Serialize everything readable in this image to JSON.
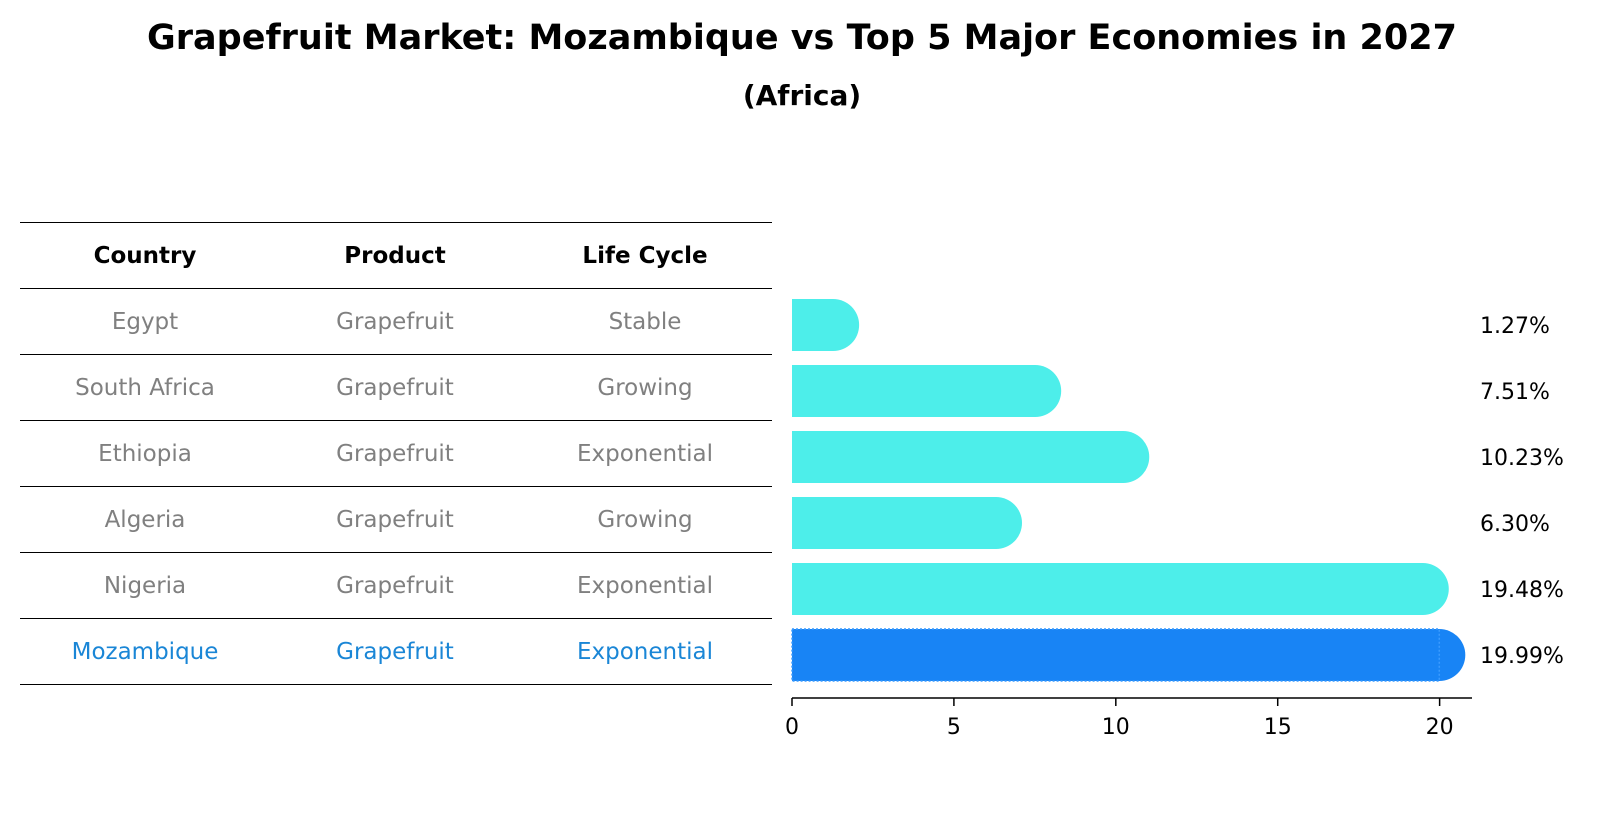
{
  "title": "Grapefruit Market: Mozambique vs Top 5 Major Economies in 2027",
  "subtitle": "(Africa)",
  "table": {
    "headers": [
      "Country",
      "Product",
      "Life Cycle"
    ],
    "rows": [
      [
        "Egypt",
        "Grapefruit",
        "Stable"
      ],
      [
        "South Africa",
        "Grapefruit",
        "Growing"
      ],
      [
        "Ethiopia",
        "Grapefruit",
        "Exponential"
      ],
      [
        "Algeria",
        "Grapefruit",
        "Growing"
      ],
      [
        "Nigeria",
        "Grapefruit",
        "Exponential"
      ],
      [
        "Mozambique",
        "Grapefruit",
        "Exponential"
      ]
    ]
  },
  "colors": {
    "bar": "#4deeea",
    "highlight": "#1884f5",
    "highlight_text": "#1a86d6",
    "muted_text": "#808080"
  },
  "chart_data": {
    "type": "bar",
    "orientation": "horizontal",
    "categories": [
      "Egypt",
      "South Africa",
      "Ethiopia",
      "Algeria",
      "Nigeria",
      "Mozambique"
    ],
    "values": [
      1.27,
      7.51,
      10.23,
      6.3,
      19.48,
      19.99
    ],
    "value_labels": [
      "1.27%",
      "7.51%",
      "10.23%",
      "6.30%",
      "19.48%",
      "19.99%"
    ],
    "highlight": "Mozambique",
    "xlim": [
      0,
      21
    ],
    "xticks": [
      0,
      5,
      10,
      15,
      20
    ],
    "xtick_labels": [
      "0",
      "5",
      "10",
      "15",
      "20"
    ]
  }
}
